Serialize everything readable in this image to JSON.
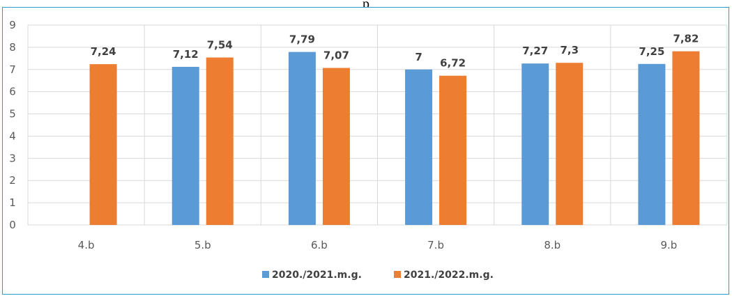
{
  "header_fragment": "p",
  "chart_data": {
    "type": "bar",
    "categories": [
      "4.b",
      "5.b",
      "6.b",
      "7.b",
      "8.b",
      "9.b"
    ],
    "series": [
      {
        "name": "2020./2021.m.g.",
        "color": "#5b9bd5",
        "values": [
          null,
          7.12,
          7.79,
          7,
          7.27,
          7.25
        ],
        "labels": [
          "",
          "7,12",
          "7,79",
          "7",
          "7,27",
          "7,25"
        ]
      },
      {
        "name": "2021./2022.m.g.",
        "color": "#ed7d31",
        "values": [
          7.24,
          7.54,
          7.07,
          6.72,
          7.3,
          7.82
        ],
        "labels": [
          "7,24",
          "7,54",
          "7,07",
          "6,72",
          "7,3",
          "7,82"
        ]
      }
    ],
    "yticks": [
      "0",
      "1",
      "2",
      "3",
      "4",
      "5",
      "6",
      "7",
      "8",
      "9"
    ],
    "ylim": [
      0,
      9
    ],
    "grid": true,
    "legend_position": "bottom"
  }
}
